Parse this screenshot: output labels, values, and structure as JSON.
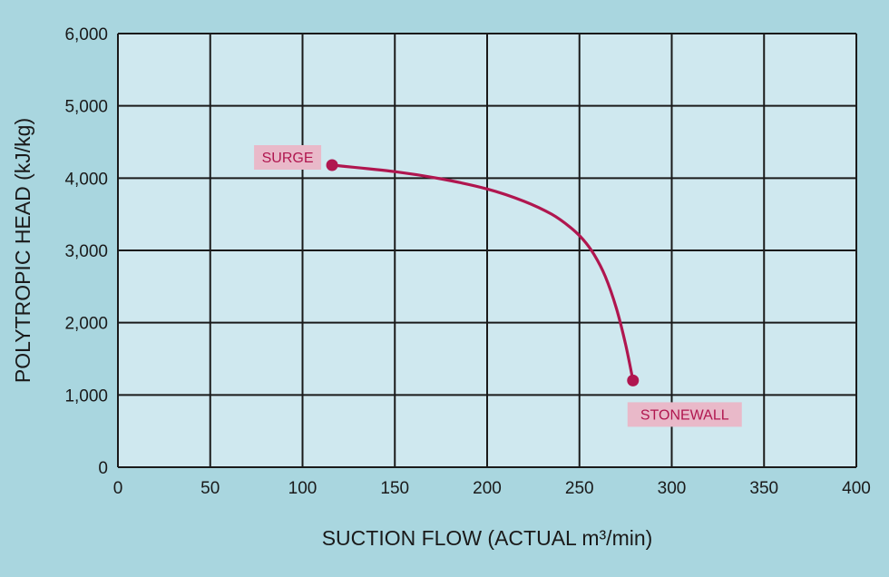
{
  "chart_data": {
    "type": "line",
    "xlabel": "SUCTION FLOW (ACTUAL m³/min)",
    "ylabel": "POLYTROPIC HEAD (kJ/kg)",
    "xlim": [
      0,
      400
    ],
    "ylim": [
      0,
      6000
    ],
    "x_ticks": [
      0,
      50,
      100,
      150,
      200,
      250,
      300,
      350,
      400
    ],
    "x_tick_labels": [
      "0",
      "50",
      "100",
      "150",
      "200",
      "250",
      "300",
      "350",
      "400"
    ],
    "y_ticks": [
      0,
      1000,
      2000,
      3000,
      4000,
      5000,
      6000
    ],
    "y_tick_labels": [
      "0",
      "1,000",
      "2,000",
      "3,000",
      "4,000",
      "5,000",
      "6,000"
    ],
    "grid": true,
    "series": [
      {
        "x": [
          116,
          150,
          175,
          200,
          220,
          235,
          245,
          252,
          258,
          264,
          270,
          275,
          279
        ],
        "y": [
          4180,
          4090,
          3990,
          3850,
          3680,
          3500,
          3320,
          3150,
          2940,
          2640,
          2200,
          1700,
          1200
        ]
      }
    ],
    "annotations": [
      {
        "text": "SURGE",
        "x": 116,
        "y": 4180
      },
      {
        "text": "STONEWALL",
        "x": 279,
        "y": 1200
      }
    ],
    "colors": {
      "background": "#a9d6df",
      "plot_area": "#cfe8ef",
      "grid": "#1a1a1a",
      "curve": "#b0164f",
      "label_box": "#e9b9c9"
    }
  }
}
